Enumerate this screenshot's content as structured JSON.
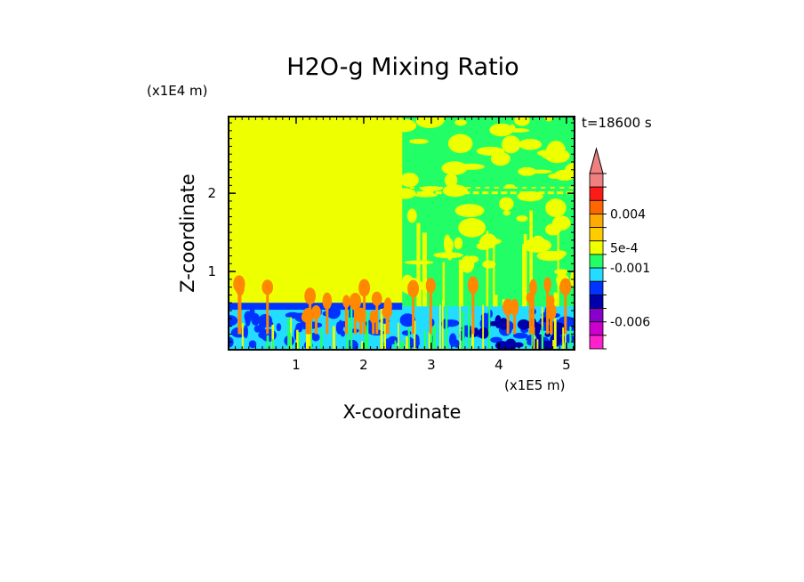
{
  "chart_data": {
    "type": "heatmap",
    "title": "H2O-g Mixing Ratio",
    "time_label": "t=18600 s",
    "xlabel": "X-coordinate",
    "ylabel": "Z-coordinate",
    "x_unit": "(x1E5 m)",
    "y_unit": "(x1E4 m)",
    "x_ticks": [
      "1",
      "2",
      "3",
      "4",
      "5"
    ],
    "x_tick_values": [
      1,
      2,
      3,
      4,
      5
    ],
    "y_ticks": [
      "1",
      "2"
    ],
    "y_tick_values": [
      1,
      2
    ],
    "xlim": [
      0,
      5.12
    ],
    "ylim": [
      0,
      2.98
    ],
    "colorbar": {
      "labels": [
        "0.004",
        "5e-4",
        "-0.001",
        "-0.006"
      ],
      "label_values": [
        0.004,
        0.0005,
        -0.001,
        -0.006
      ],
      "extend": "max",
      "levels_top_to_bottom": [
        {
          "color": "#f08080"
        },
        {
          "color": "#ff1a1a"
        },
        {
          "color": "#ff6600"
        },
        {
          "color": "#ffaa00"
        },
        {
          "color": "#ffcc00"
        },
        {
          "color": "#eeff00"
        },
        {
          "color": "#22ff66"
        },
        {
          "color": "#22ddff"
        },
        {
          "color": "#0033ff"
        },
        {
          "color": "#0000aa"
        },
        {
          "color": "#8800cc"
        },
        {
          "color": "#cc00cc"
        },
        {
          "color": "#ff22cc"
        }
      ]
    },
    "fields": {
      "background": "#eeff00",
      "moist_region": "#22ff66",
      "boundary_layer_blue": "#0033ff",
      "boundary_layer_cyan": "#22ddff",
      "deep_blue": "#0000aa",
      "plume_orange": "#ff8800"
    },
    "regions": {
      "moist_region_x_start": 2.57,
      "boundary_layer_top": 0.6
    }
  }
}
